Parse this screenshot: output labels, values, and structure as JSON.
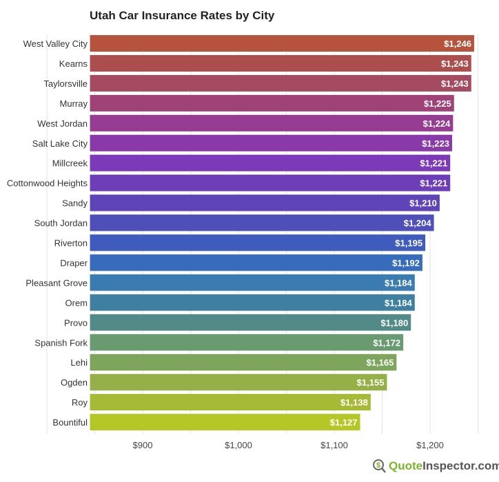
{
  "chart_data": {
    "type": "bar",
    "orientation": "horizontal",
    "title": "Utah Car Insurance Rates by City",
    "xlabel": "",
    "ylabel": "",
    "xlim": [
      845,
      1300
    ],
    "x_ticks": [
      "$900",
      "$1,000",
      "$1,100",
      "$1,200"
    ],
    "x_tick_values": [
      900,
      1000,
      1100,
      1200
    ],
    "grid": true,
    "categories": [
      "West Valley City",
      "Kearns",
      "Taylorsville",
      "Murray",
      "West Jordan",
      "Salt Lake City",
      "Millcreek",
      "Cottonwood Heights",
      "Sandy",
      "South Jordan",
      "Riverton",
      "Draper",
      "Pleasant Grove",
      "Orem",
      "Provo",
      "Spanish Fork",
      "Lehi",
      "Ogden",
      "Roy",
      "Bountiful"
    ],
    "values": [
      1246,
      1243,
      1243,
      1225,
      1224,
      1223,
      1221,
      1221,
      1210,
      1204,
      1195,
      1192,
      1184,
      1184,
      1180,
      1172,
      1165,
      1155,
      1138,
      1127
    ],
    "labels": [
      "$1,246",
      "$1,243",
      "$1,243",
      "$1,225",
      "$1,224",
      "$1,223",
      "$1,221",
      "$1,221",
      "$1,210",
      "$1,204",
      "$1,195",
      "$1,192",
      "$1,184",
      "$1,184",
      "$1,180",
      "$1,172",
      "$1,165",
      "$1,155",
      "$1,138",
      "$1,127"
    ],
    "colors": [
      "#b5533c",
      "#ac4e4e",
      "#a64a62",
      "#9e4278",
      "#963c92",
      "#8a3aa8",
      "#7c3ab8",
      "#6e3db8",
      "#5e44b8",
      "#4e4fb8",
      "#3f5bbb",
      "#366cbb",
      "#3a7bb0",
      "#3f80a0",
      "#528a88",
      "#6a9a70",
      "#7ea55c",
      "#95b046",
      "#a7ba35",
      "#b5c725"
    ]
  },
  "watermark": {
    "part1": "Quote",
    "part2": "Inspector.com",
    "icon": "dollar-magnifier-icon"
  }
}
